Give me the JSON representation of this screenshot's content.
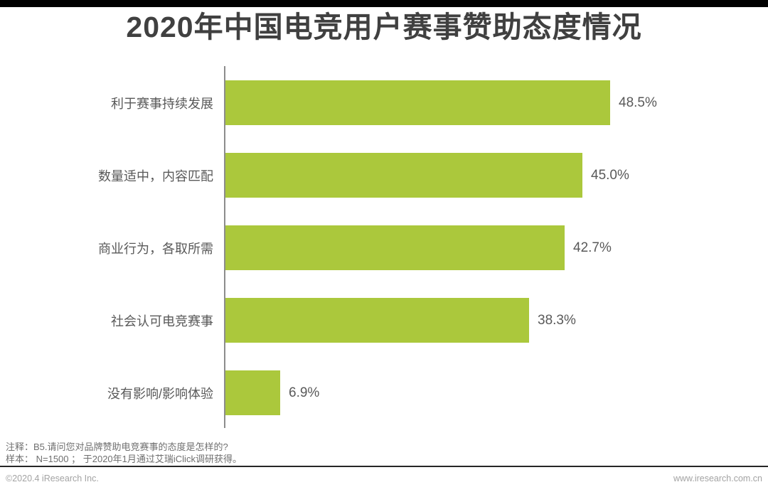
{
  "title": "2020年中国电竞用户赛事赞助态度情况",
  "chart_data": {
    "type": "bar",
    "orientation": "horizontal",
    "title": "2020年中国电竞用户赛事赞助态度情况",
    "categories": [
      "利于赛事持续发展",
      "数量适中，内容匹配",
      "商业行为，各取所需",
      "社会认可电竞赛事",
      "没有影响/影响体验"
    ],
    "values": [
      48.5,
      45.0,
      42.7,
      38.3,
      6.9
    ],
    "value_labels": [
      "48.5%",
      "45.0%",
      "42.7%",
      "38.3%",
      "6.9%"
    ],
    "unit": "%",
    "xlim": [
      0,
      50
    ],
    "grid": false,
    "legend": false,
    "bar_color": "#abc83c",
    "axis_color": "#8c8c8c"
  },
  "notes": {
    "line1": "注释：B5.请问您对品牌赞助电竞赛事的态度是怎样的?",
    "line2": "样本：  N=1500 ；  于2020年1月通过艾瑞iClick调研获得。"
  },
  "footer": {
    "copyright": "©2020.4 iResearch Inc.",
    "website": "www.iresearch.com.cn"
  }
}
